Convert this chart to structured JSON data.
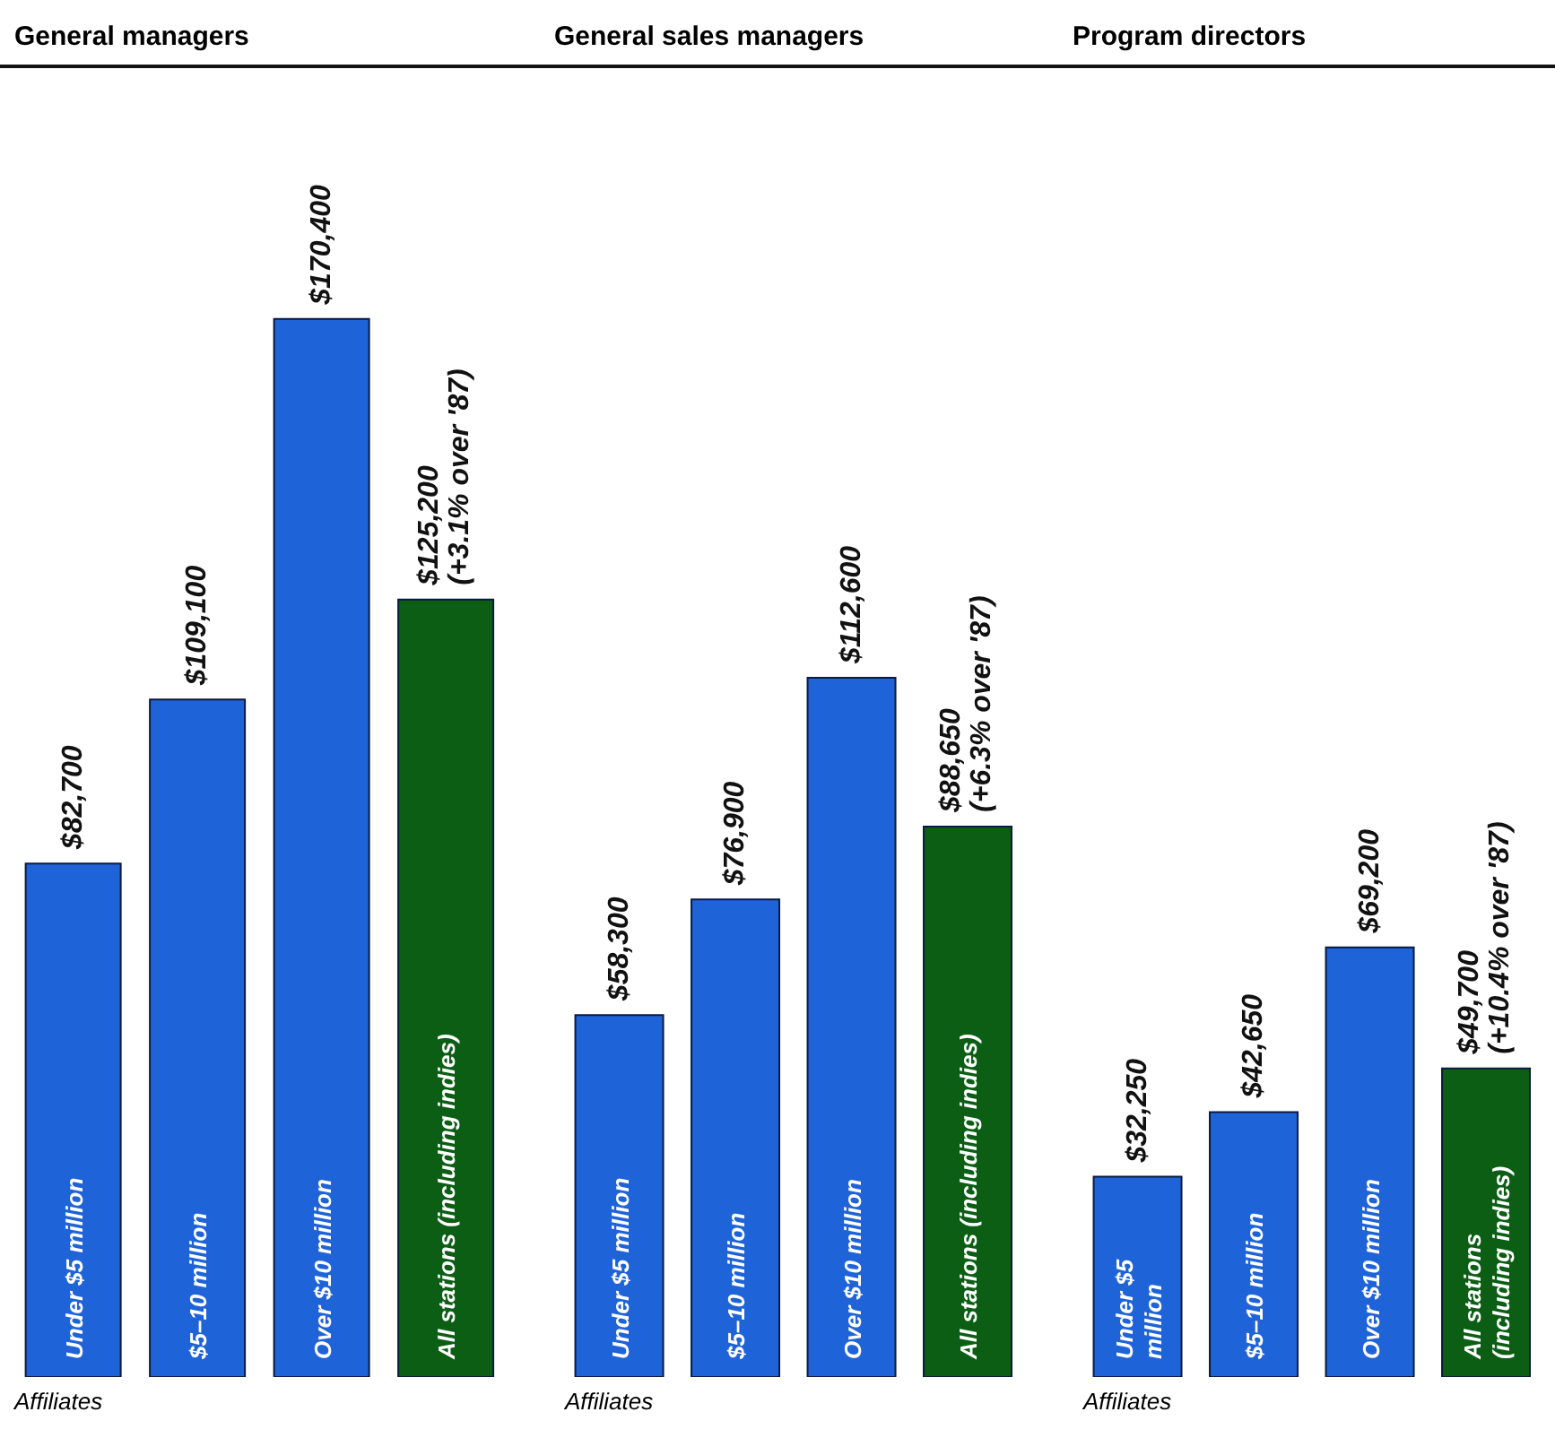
{
  "chart_data": [
    {
      "type": "bar",
      "title": "General managers",
      "categories": [
        "Under $5 million",
        "$5–10 million",
        "Over $10 million",
        "All stations (including indies)"
      ],
      "values": [
        82700,
        109100,
        170400,
        125200
      ],
      "colors": [
        "#1f63d8",
        "#1f63d8",
        "#1f63d8",
        "#0b5e14"
      ],
      "value_labels": [
        "$82,700",
        "$109,100",
        "$170,400",
        "$125,200 (+3.1% over '87)"
      ],
      "annotations": [
        "Affiliates"
      ]
    },
    {
      "type": "bar",
      "title": "General sales managers",
      "categories": [
        "Under $5 million",
        "$5–10 million",
        "Over $10 million",
        "All stations (including indies)"
      ],
      "values": [
        58300,
        76900,
        112600,
        88650
      ],
      "colors": [
        "#1f63d8",
        "#1f63d8",
        "#1f63d8",
        "#0b5e14"
      ],
      "value_labels": [
        "$58,300",
        "$76,900",
        "$112,600",
        "$88,650 (+6.3% over '87)"
      ],
      "annotations": [
        "Affiliates"
      ]
    },
    {
      "type": "bar",
      "title": "Program directors",
      "categories": [
        "Under $5 million",
        "$5–10 million",
        "Over $10 million",
        "All stations (including indies)"
      ],
      "values": [
        32250,
        42650,
        69200,
        49700
      ],
      "colors": [
        "#1f63d8",
        "#1f63d8",
        "#1f63d8",
        "#0b5e14"
      ],
      "value_labels": [
        "$32,250",
        "$42,650",
        "$69,200",
        "$49,700 (+10.4% over '87)"
      ],
      "annotations": [
        "Affiliates"
      ]
    }
  ]
}
